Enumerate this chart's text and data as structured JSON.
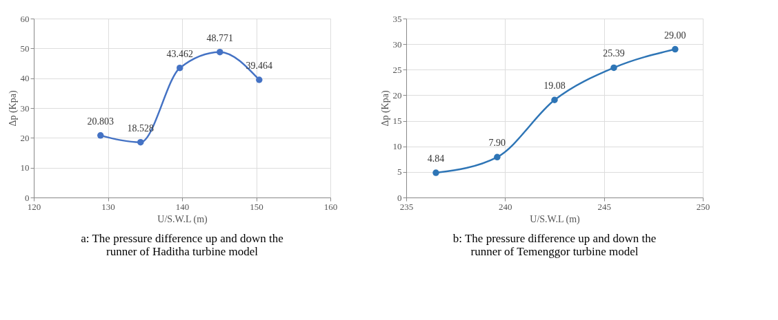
{
  "chart_data": [
    {
      "type": "line",
      "title": "a: The pressure difference up and down the runner of Haditha turbine model",
      "xlabel": "U/S.W.L (m)",
      "ylabel": "Δp (Kpa)",
      "x": [
        129.0,
        134.4,
        139.7,
        145.1,
        150.4
      ],
      "series": [
        {
          "color": "#4472c4",
          "values": [
            20.803,
            18.528,
            43.462,
            48.771,
            39.464
          ],
          "value_labels": [
            "20.803",
            "18.528",
            "43.462",
            "48.771",
            "39.464"
          ]
        }
      ],
      "xlim": [
        120,
        160
      ],
      "xticks": [
        120,
        130,
        140,
        150,
        160
      ],
      "ylim": [
        0,
        60
      ],
      "yticks": [
        0,
        10,
        20,
        30,
        40,
        50,
        60
      ],
      "grid": true,
      "marker": "circle",
      "line_style": "solid"
    },
    {
      "type": "line",
      "title": "b: The pressure difference up and down the runner of Temenggor turbine model",
      "xlabel": "U/S.W.L (m)",
      "ylabel": "Δp (Kpa)",
      "x": [
        236.5,
        239.6,
        242.5,
        245.5,
        248.6
      ],
      "series": [
        {
          "color": "#2e75b6",
          "values": [
            4.84,
            7.9,
            19.08,
            25.39,
            29.0
          ],
          "value_labels": [
            "4.84",
            "7.90",
            "19.08",
            "25.39",
            "29.00"
          ]
        }
      ],
      "xlim": [
        235,
        250
      ],
      "xticks": [
        235,
        240,
        245,
        250
      ],
      "ylim": [
        0,
        35
      ],
      "yticks": [
        0,
        5,
        10,
        15,
        20,
        25,
        30,
        35
      ],
      "grid": true,
      "marker": "circle",
      "line_style": "solid"
    }
  ]
}
